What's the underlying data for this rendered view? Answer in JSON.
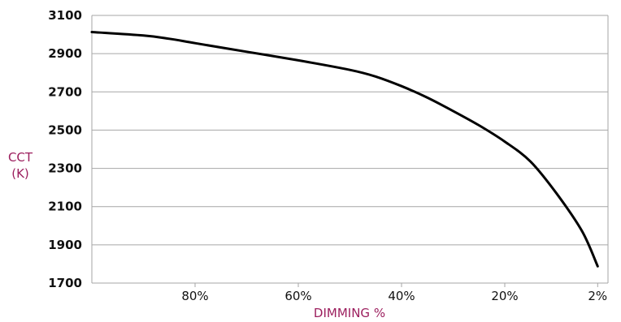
{
  "chart_data": {
    "type": "line",
    "title": "",
    "xlabel": "DIMMING %",
    "ylabel": [
      "CCT",
      "(K)"
    ],
    "ylim": [
      1700,
      3100
    ],
    "yticks": [
      1700,
      1900,
      2100,
      2300,
      2500,
      2700,
      2900,
      3100
    ],
    "xlim": [
      100,
      0
    ],
    "xticks": [
      {
        "value": 80,
        "label": "80%"
      },
      {
        "value": 60,
        "label": "60%"
      },
      {
        "value": 40,
        "label": "40%"
      },
      {
        "value": 20,
        "label": "20%"
      },
      {
        "value": 2,
        "label": "2%"
      }
    ],
    "grid": "horizontal",
    "series": [
      {
        "color": "#000000",
        "x": [
          100,
          90,
          85,
          80,
          70,
          60,
          50,
          45,
          40,
          35,
          30,
          25,
          20,
          15,
          10,
          5,
          2
        ],
        "y": [
          3013,
          2995,
          2978,
          2955,
          2910,
          2865,
          2815,
          2780,
          2730,
          2670,
          2600,
          2525,
          2440,
          2335,
          2170,
          1970,
          1788
        ]
      }
    ],
    "colors": {
      "axis_title": "#9c1f5e",
      "gridline": "#a6a6a6",
      "line": "#000000"
    }
  }
}
